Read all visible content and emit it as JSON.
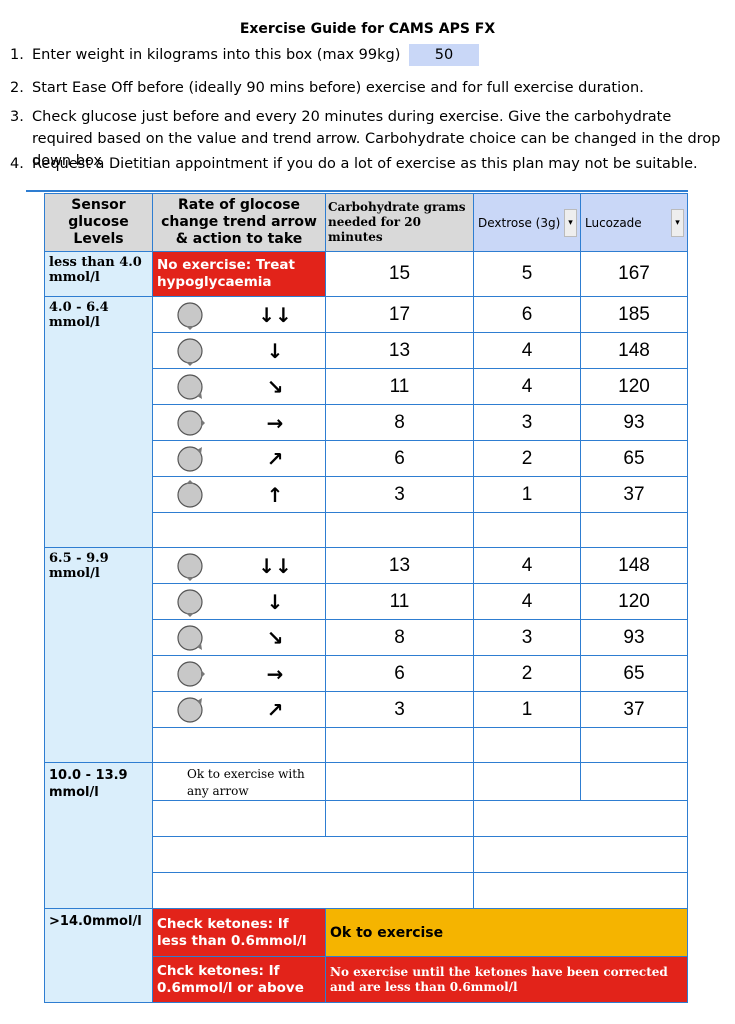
{
  "title": "Exercise Guide for CAMS APS FX",
  "instructions": [
    {
      "num": "1.",
      "text": "Enter weight in kilograms into this box (max 99kg)",
      "weight_value": "50"
    },
    {
      "num": "2.",
      "text": "Start Ease Off before (ideally 90 mins before) exercise and for full exercise duration."
    },
    {
      "num": "3.",
      "text": "Check glucose just before and every 20 minutes during exercise. Give the carbohydrate required based on the value and trend arrow. Carbohydrate choice can be changed in the drop down box"
    },
    {
      "num": "4.",
      "text": "Request a Dietitian appointment if you do a lot of exercise as this plan may not be suitable."
    }
  ],
  "headers": {
    "sensor": "Sensor glucose Levels",
    "rate": "Rate of glocose change trend arrow & action to take",
    "carb": "Carbohydrate grams needed for 20 minutes",
    "dropdown1": "Dextrose (3g)",
    "dropdown2": "Lucozade"
  },
  "rows": {
    "low": {
      "level": "less than 4.0 mmol/l",
      "action": "No exercise: Treat hypoglycaemia",
      "carb": "15",
      "dex": "5",
      "luc": "167"
    },
    "band1_level": "4.0 - 6.4 mmol/l",
    "band1": [
      {
        "arrow": "↓↓",
        "carb": "17",
        "dex": "6",
        "luc": "185"
      },
      {
        "arrow": "↓",
        "carb": "13",
        "dex": "4",
        "luc": "148"
      },
      {
        "arrow": "↘",
        "carb": "11",
        "dex": "4",
        "luc": "120"
      },
      {
        "arrow": "→",
        "carb": "8",
        "dex": "3",
        "luc": "93"
      },
      {
        "arrow": "↗",
        "carb": "6",
        "dex": "2",
        "luc": "65"
      },
      {
        "arrow": "↑",
        "carb": "3",
        "dex": "1",
        "luc": "37"
      }
    ],
    "band2_level": "6.5 - 9.9 mmol/l",
    "band2": [
      {
        "arrow": "↓↓",
        "carb": "13",
        "dex": "4",
        "luc": "148"
      },
      {
        "arrow": "↓",
        "carb": "11",
        "dex": "4",
        "luc": "120"
      },
      {
        "arrow": "↘",
        "carb": "8",
        "dex": "3",
        "luc": "93"
      },
      {
        "arrow": "→",
        "carb": "6",
        "dex": "2",
        "luc": "65"
      },
      {
        "arrow": "↗",
        "carb": "3",
        "dex": "1",
        "luc": "37"
      }
    ],
    "band3_level": "10.0 - 13.9 mmol/l",
    "band3_action": "Ok to exercise with any arrow",
    "high_level": ">14.0mmol/l",
    "high_action1": "Check ketones: If less than 0.6mmol/l",
    "high_result1": "Ok to exercise",
    "high_action2": "Chck ketones: If 0.6mmol/l or above",
    "high_result2": "No exercise until the ketones have been corrected and are less than 0.6mmol/l"
  },
  "colors": {
    "red": "#e2231a",
    "orange": "#f5b400",
    "blue_border": "#2e7dd1",
    "light_blue": "#daeefb",
    "dropdown": "#c9d7f7"
  }
}
